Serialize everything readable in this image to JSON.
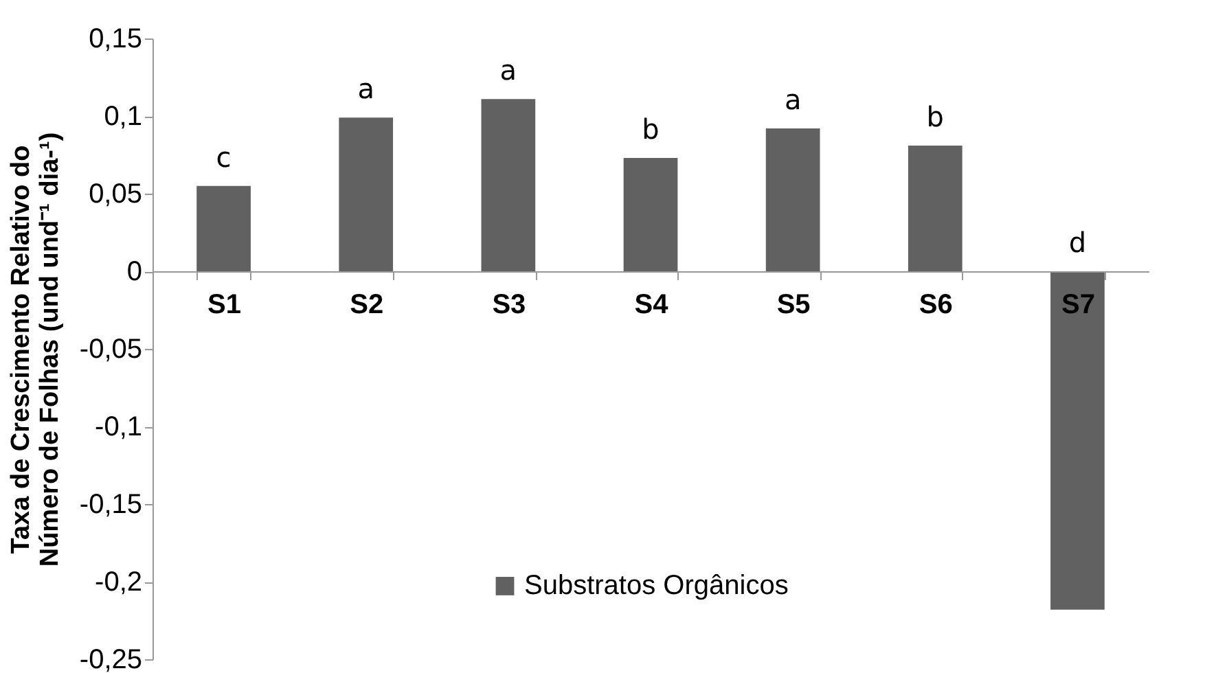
{
  "chart_data": {
    "type": "bar",
    "ylabel": "Taxa de Crescimento Relativo do\nNúmero de Folhas (und und⁻¹ dia-¹)",
    "categories": [
      "S1",
      "S2",
      "S3",
      "S4",
      "S5",
      "S6",
      "S7"
    ],
    "series": [
      {
        "name": "Substratos Orgânicos",
        "color": "#616161",
        "values": [
          0.055,
          0.099,
          0.111,
          0.073,
          0.092,
          0.081,
          -0.218
        ]
      }
    ],
    "ylim": [
      -0.25,
      0.15
    ],
    "yticks": [
      {
        "value": -0.25,
        "label": "-0,25"
      },
      {
        "value": -0.2,
        "label": "-0,2"
      },
      {
        "value": -0.15,
        "label": "-0,15"
      },
      {
        "value": -0.1,
        "label": "-0,1"
      },
      {
        "value": -0.05,
        "label": "-0,05"
      },
      {
        "value": 0,
        "label": "0"
      },
      {
        "value": 0.05,
        "label": "0,05"
      },
      {
        "value": 0.1,
        "label": "0,1"
      },
      {
        "value": 0.15,
        "label": "0,15"
      }
    ],
    "annotations": [
      {
        "text": "c",
        "x": "S1",
        "y": 0.055
      },
      {
        "text": "a",
        "x": "S2",
        "y": 0.099
      },
      {
        "text": "a",
        "x": "S3",
        "y": 0.111
      },
      {
        "text": "b",
        "x": "S4",
        "y": 0.073
      },
      {
        "text": "a",
        "x": "S5",
        "y": 0.092
      },
      {
        "text": "b",
        "x": "S6",
        "y": 0.081
      },
      {
        "text": "d",
        "x": "S7",
        "y": 0
      }
    ],
    "grid": false,
    "legend": "bottom"
  }
}
